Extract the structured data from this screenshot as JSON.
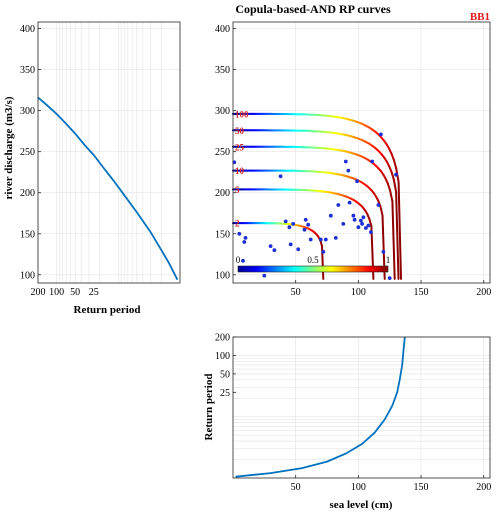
{
  "chart_data": [
    {
      "id": "left",
      "type": "line",
      "title": "",
      "xlabel": "Return period",
      "ylabel": "river discharge (m3/s)",
      "x_scale": "log-reversed",
      "x_ticks": [
        "200",
        "100",
        "50",
        "25"
      ],
      "y_ticks": [
        "100",
        "150",
        "200",
        "250",
        "300",
        "350",
        "400"
      ],
      "ylim": [
        90,
        408
      ],
      "grid": true,
      "series": [
        {
          "color": "#0072bd",
          "points": [
            [
              200,
              316
            ],
            [
              150,
              308
            ],
            [
              100,
              296
            ],
            [
              70,
              284
            ],
            [
              50,
              272
            ],
            [
              35,
              258
            ],
            [
              25,
              246
            ],
            [
              18,
              232
            ],
            [
              12,
              215
            ],
            [
              8,
              197
            ],
            [
              5,
              176
            ],
            [
              3,
              152
            ],
            [
              2,
              130
            ],
            [
              1.5,
              114
            ],
            [
              1.1,
              94
            ]
          ]
        }
      ]
    },
    {
      "id": "main",
      "type": "line",
      "title": "Copula-based-AND RP curves",
      "annotation": "BB1",
      "xlabel": "",
      "ylabel": "",
      "x_ticks": [
        50,
        100,
        150,
        200
      ],
      "y_ticks": [
        100,
        150,
        200,
        250,
        300,
        350,
        400
      ],
      "xlim": [
        0,
        205
      ],
      "ylim": [
        90,
        408
      ],
      "grid": true,
      "colorbar": {
        "min": 0,
        "max": 1,
        "tick_labels": [
          "0",
          "0.5",
          "1"
        ],
        "colormap": "jet"
      },
      "curves": [
        {
          "label": "2",
          "y_level": 163,
          "x_end": 72,
          "y_start": 95
        },
        {
          "label": "5",
          "y_level": 204,
          "x_end": 112,
          "y_start": 95
        },
        {
          "label": "10",
          "y_level": 227,
          "x_end": 121,
          "y_start": 95
        },
        {
          "label": "25",
          "y_level": 256,
          "x_end": 129,
          "y_start": 95
        },
        {
          "label": "50",
          "y_level": 276,
          "x_end": 132,
          "y_start": 95
        },
        {
          "label": "100",
          "y_level": 296,
          "x_end": 134,
          "y_start": 95
        }
      ],
      "scatter": [
        [
          1,
          237
        ],
        [
          5,
          150
        ],
        [
          9,
          140
        ],
        [
          10,
          145
        ],
        [
          8,
          117
        ],
        [
          17,
          108
        ],
        [
          25,
          99
        ],
        [
          30,
          135
        ],
        [
          33,
          130
        ],
        [
          38,
          220
        ],
        [
          42,
          165
        ],
        [
          45,
          158
        ],
        [
          46,
          137
        ],
        [
          48,
          162
        ],
        [
          52,
          131
        ],
        [
          57,
          155
        ],
        [
          58,
          167
        ],
        [
          60,
          161
        ],
        [
          62,
          143
        ],
        [
          70,
          143
        ],
        [
          72,
          128
        ],
        [
          74,
          143
        ],
        [
          78,
          172
        ],
        [
          82,
          145
        ],
        [
          84,
          185
        ],
        [
          88,
          162
        ],
        [
          90,
          238
        ],
        [
          92,
          227
        ],
        [
          93,
          188
        ],
        [
          96,
          172
        ],
        [
          97,
          167
        ],
        [
          99,
          214
        ],
        [
          100,
          158
        ],
        [
          102,
          166
        ],
        [
          103,
          162
        ],
        [
          104,
          170
        ],
        [
          106,
          157
        ],
        [
          108,
          160
        ],
        [
          110,
          152
        ],
        [
          111,
          238
        ],
        [
          116,
          185
        ],
        [
          118,
          271
        ],
        [
          120,
          128
        ],
        [
          130,
          222
        ],
        [
          125,
          96
        ]
      ]
    },
    {
      "id": "bottom",
      "type": "line",
      "title": "",
      "xlabel": "sea level (cm)",
      "ylabel": "Return period",
      "y_scale": "log",
      "x_ticks": [
        50,
        100,
        150,
        200
      ],
      "y_ticks": [
        "200",
        "100",
        "50",
        "25"
      ],
      "xlim": [
        0,
        205
      ],
      "grid": true,
      "series": [
        {
          "color": "#0072bd",
          "points": [
            [
              2,
              1.05
            ],
            [
              30,
              1.2
            ],
            [
              55,
              1.45
            ],
            [
              75,
              1.85
            ],
            [
              90,
              2.5
            ],
            [
              103,
              3.6
            ],
            [
              113,
              5.5
            ],
            [
              121,
              9
            ],
            [
              127,
              15
            ],
            [
              131,
              25
            ],
            [
              133,
              40
            ],
            [
              135,
              70
            ],
            [
              136,
              120
            ],
            [
              137,
              200
            ]
          ]
        }
      ]
    }
  ]
}
